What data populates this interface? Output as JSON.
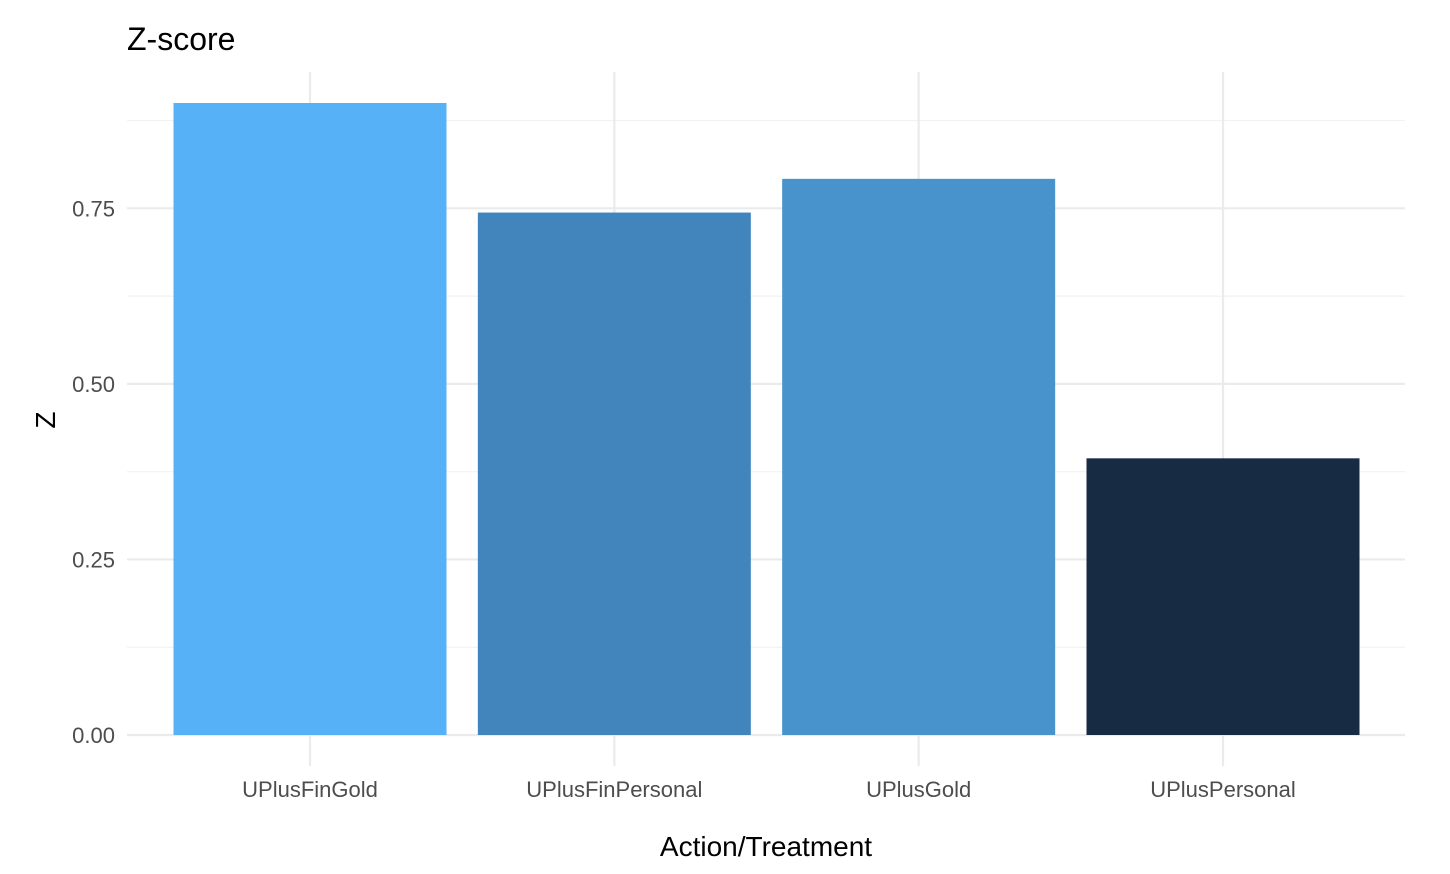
{
  "chart_data": {
    "type": "bar",
    "title": "Z-score",
    "xlabel": "Action/Treatment",
    "ylabel": "Z",
    "categories": [
      "UPlusFinGold",
      "UPlusFinPersonal",
      "UPlusGold",
      "UPlusPersonal"
    ],
    "values": [
      0.9,
      0.744,
      0.792,
      0.394
    ],
    "bar_colors": [
      "#56B1F7",
      "#4285BD",
      "#4893CB",
      "#172B43"
    ],
    "ylim": [
      0,
      0.9
    ],
    "y_ticks": [
      0,
      0.25,
      0.5,
      0.75
    ],
    "y_tick_labels": [
      "0.00",
      "0.25",
      "0.50",
      "0.75"
    ],
    "grid": true,
    "legend": "none"
  }
}
